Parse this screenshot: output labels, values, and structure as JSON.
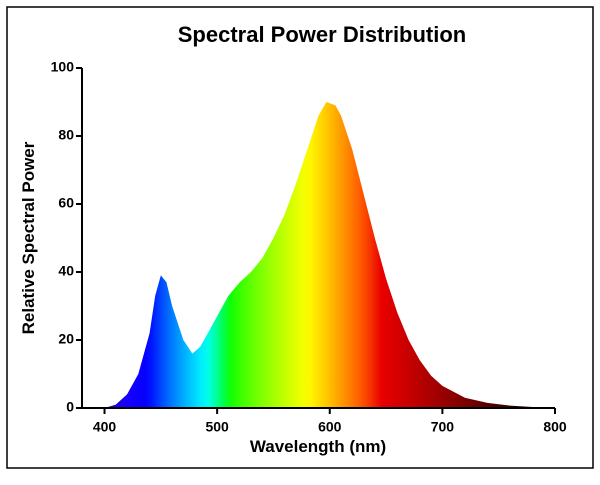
{
  "chart_data": {
    "type": "area",
    "title": "Spectral Power Distribution",
    "xlabel": "Wavelength (nm)",
    "ylabel": "Relative Spectral Power",
    "x": [
      380,
      400,
      410,
      420,
      430,
      440,
      445,
      450,
      455,
      460,
      470,
      478,
      485,
      490,
      500,
      510,
      520,
      530,
      540,
      550,
      560,
      570,
      580,
      590,
      597,
      605,
      610,
      620,
      630,
      640,
      650,
      660,
      670,
      680,
      690,
      700,
      720,
      740,
      760,
      780,
      800
    ],
    "values": [
      0,
      0,
      1,
      4,
      10,
      22,
      33,
      39,
      37,
      30,
      20,
      16,
      18,
      21,
      27,
      33,
      37,
      40,
      44,
      50,
      57,
      66,
      76,
      86,
      90,
      89,
      86,
      76,
      63,
      50,
      38,
      28,
      20,
      14,
      9.5,
      6.5,
      3,
      1.5,
      0.7,
      0.3,
      0
    ],
    "xlim": [
      380,
      800
    ],
    "xticks": [
      400,
      500,
      600,
      700,
      800
    ],
    "ylim": [
      0,
      100
    ],
    "yticks": [
      0,
      20,
      40,
      60,
      80,
      100
    ]
  }
}
